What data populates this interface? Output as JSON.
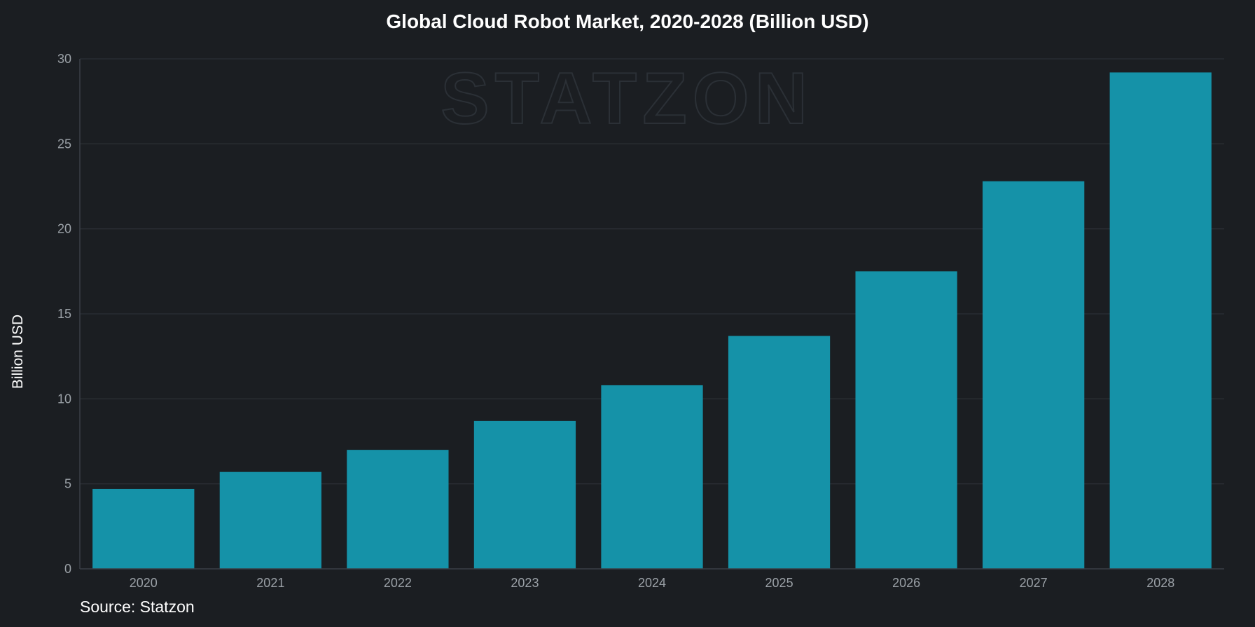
{
  "chart_data": {
    "type": "bar",
    "title": "Global Cloud Robot Market, 2020-2028 (Billion USD)",
    "xlabel": "",
    "ylabel": "Billion USD",
    "categories": [
      "2020",
      "2021",
      "2022",
      "2023",
      "2024",
      "2025",
      "2026",
      "2027",
      "2028"
    ],
    "values": [
      4.7,
      5.7,
      7.0,
      8.7,
      10.8,
      13.7,
      17.5,
      22.8,
      29.2
    ],
    "ylim": [
      0,
      30
    ],
    "yticks": [
      0,
      5,
      10,
      15,
      20,
      25,
      30
    ],
    "grid": true,
    "legend": "none",
    "bar_color": "#1592a8",
    "background_color": "#1b1e22"
  },
  "source_note": "Source: Statzon",
  "watermark": "STATZON"
}
